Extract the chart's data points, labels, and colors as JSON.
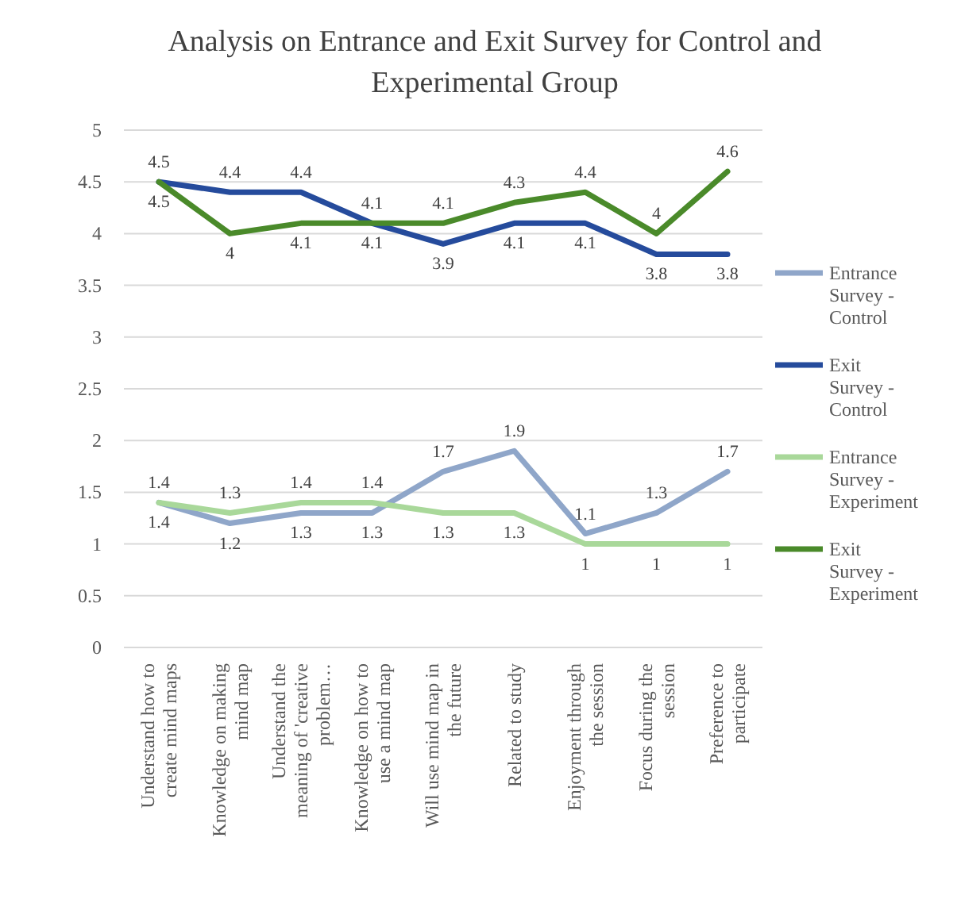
{
  "chart_data": {
    "type": "line",
    "title": "Analysis on Entrance and Exit Survey for Control and Experimental Group",
    "categories": [
      "Understand how to create mind maps",
      "Knowledge on making mind map",
      "Understand the meaning of 'creative problem…",
      "Knowledge on how to use a mind map",
      "Will use mind map in the future",
      "Related to study",
      "Enjoyment through the session",
      "Focus during the session",
      "Preference to participate"
    ],
    "series": [
      {
        "name": "Entrance Survey - Control",
        "color": "#8fa6c9",
        "values": [
          1.4,
          1.2,
          1.3,
          1.3,
          1.7,
          1.9,
          1.1,
          1.3,
          1.7
        ]
      },
      {
        "name": "Exit Survey - Control",
        "color": "#254b9c",
        "values": [
          4.5,
          4.4,
          4.4,
          4.1,
          3.9,
          4.1,
          4.1,
          3.8,
          3.8
        ]
      },
      {
        "name": "Entrance Survey - Experiment",
        "color": "#a9d89a",
        "values": [
          1.4,
          1.3,
          1.4,
          1.4,
          1.3,
          1.3,
          1,
          1,
          1
        ]
      },
      {
        "name": "Exit Survey - Experiment",
        "color": "#4a8a2a",
        "values": [
          4.5,
          4,
          4.1,
          4.1,
          4.1,
          4.3,
          4.4,
          4,
          4.6
        ]
      }
    ],
    "ylim": [
      0,
      5
    ],
    "yticks": [
      0,
      0.5,
      1,
      1.5,
      2,
      2.5,
      3,
      3.5,
      4,
      4.5,
      5
    ],
    "grid": "y",
    "legend": "right",
    "data_labels": true,
    "marker": "none",
    "line_style": "solid"
  }
}
